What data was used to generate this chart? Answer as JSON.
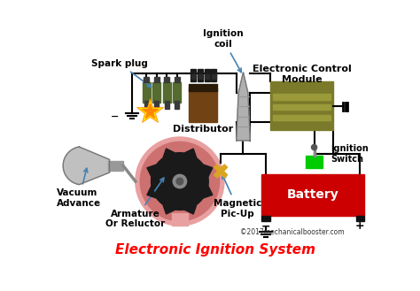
{
  "title": "Electronic Ignition System",
  "title_color": "#FF0000",
  "title_fontsize": 11,
  "bg_color": "#FFFFFF",
  "copyright": "©2017mechanicalbooster.com",
  "labels": {
    "spark_plug": "Spark plug",
    "distributor": "Distributor",
    "ignition_coil": "Ignition\ncoil",
    "ecm": "Electronic Control\nModule",
    "ignition_switch": "Ignition\nSwitch",
    "battery": "Battery",
    "vacuum_advance": "Vacuum\nAdvance",
    "armature": "Armature\nOr Reluctor",
    "magnetic_pickup": "Magnetic\nPic-Up"
  },
  "label_color": "#000000",
  "label_fontsize": 7,
  "arrow_color": "#4682B4",
  "wire_color": "#000000",
  "battery_color": "#CC0000",
  "battery_text_color": "#FFFFFF",
  "ecm_color": "#7A7A2A",
  "ecm_stripe_color": "#9A9A3A",
  "spark_plug_color": "#556B2F",
  "distributor_body_color": "#704214",
  "distributor_top_color": "#1A1A1A",
  "coil_color": "#B0B0B0",
  "rotor_outer_color": "#E8A0A0",
  "rotor_inner_color": "#CC6666",
  "gear_color": "#1A1A1A",
  "gear_center_color": "#888888",
  "pickup_color": "#DAA520",
  "vacuum_body_color": "#C0C0C0",
  "vacuum_dark_color": "#888888",
  "ignition_switch_color": "#00CC00",
  "ignition_switch_stem": "#888888"
}
